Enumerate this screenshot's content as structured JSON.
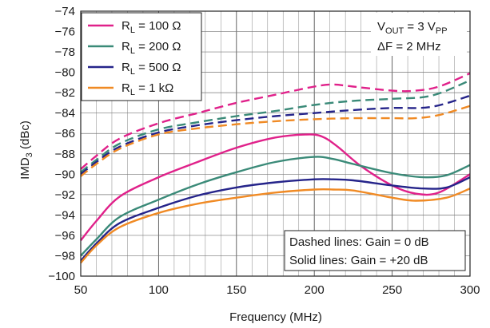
{
  "chart_data": {
    "type": "line",
    "xlabel": "Frequency (MHz)",
    "ylabel_main": "IMD",
    "ylabel_sub": "3",
    "ylabel_rest": " (dBc)",
    "xlim": [
      50,
      300
    ],
    "ylim": [
      -100,
      -74
    ],
    "x_ticks": [
      50,
      100,
      150,
      200,
      250,
      300
    ],
    "y_ticks": [
      -74,
      -76,
      -78,
      -80,
      -82,
      -84,
      -86,
      -88,
      -90,
      -92,
      -94,
      -96,
      -98,
      -100
    ],
    "grid": true,
    "legend_position": "top-left",
    "series": [
      {
        "name": "R_L = 100 Ω",
        "label_main": "R",
        "label_sub": "L",
        "label_rest": " = 100 Ω",
        "color": "#e0218a",
        "style": "dashed",
        "x": [
          50,
          60,
          75,
          100,
          125,
          150,
          175,
          200,
          212,
          225,
          250,
          265,
          280,
          300
        ],
        "y": [
          -89.5,
          -88.2,
          -86.5,
          -85.0,
          -84.0,
          -83.0,
          -82.2,
          -81.4,
          -81.2,
          -81.4,
          -81.8,
          -81.8,
          -81.4,
          -80.1
        ]
      },
      {
        "name": "R_L = 200 Ω",
        "label_main": "R",
        "label_sub": "L",
        "label_rest": " = 200 Ω",
        "color": "#3a8a78",
        "style": "dashed",
        "x": [
          50,
          60,
          75,
          100,
          125,
          150,
          175,
          200,
          225,
          250,
          275,
          300
        ],
        "y": [
          -89.8,
          -88.6,
          -87.0,
          -85.6,
          -84.9,
          -84.3,
          -83.8,
          -83.2,
          -82.8,
          -82.6,
          -82.3,
          -80.8
        ]
      },
      {
        "name": "R_L = 500 Ω",
        "label_main": "R",
        "label_sub": "L",
        "label_rest": " = 500 Ω",
        "color": "#25248a",
        "style": "dashed",
        "x": [
          50,
          60,
          75,
          100,
          125,
          150,
          175,
          200,
          225,
          250,
          275,
          300
        ],
        "y": [
          -90.0,
          -88.8,
          -87.3,
          -85.9,
          -85.2,
          -84.7,
          -84.3,
          -84.0,
          -83.7,
          -83.5,
          -83.4,
          -82.3
        ]
      },
      {
        "name": "R_L = 1 kΩ",
        "label_main": "R",
        "label_sub": "L",
        "label_rest": " = 1 kΩ",
        "color": "#f08a24",
        "style": "dashed",
        "x": [
          50,
          60,
          75,
          100,
          125,
          150,
          175,
          200,
          225,
          250,
          265,
          280,
          300
        ],
        "y": [
          -90.2,
          -89.0,
          -87.5,
          -86.1,
          -85.5,
          -85.1,
          -84.8,
          -84.6,
          -84.5,
          -84.5,
          -84.5,
          -84.2,
          -83.3
        ]
      },
      {
        "name": "R_L = 100 Ω",
        "color": "#e0218a",
        "style": "solid",
        "x": [
          50,
          60,
          75,
          100,
          125,
          150,
          175,
          195,
          205,
          215,
          230,
          250,
          265,
          280,
          300
        ],
        "y": [
          -96.5,
          -94.6,
          -92.2,
          -90.3,
          -88.8,
          -87.4,
          -86.4,
          -86.1,
          -86.3,
          -87.3,
          -89.2,
          -91.1,
          -91.9,
          -91.8,
          -90.0
        ]
      },
      {
        "name": "R_L = 200 Ω",
        "color": "#3a8a78",
        "style": "solid",
        "x": [
          50,
          60,
          75,
          100,
          125,
          150,
          175,
          200,
          212,
          225,
          250,
          270,
          285,
          300
        ],
        "y": [
          -98.0,
          -96.4,
          -94.2,
          -92.5,
          -91.0,
          -89.8,
          -88.8,
          -88.3,
          -88.5,
          -89.0,
          -89.9,
          -90.3,
          -90.1,
          -89.1
        ]
      },
      {
        "name": "R_L = 500 Ω",
        "color": "#25248a",
        "style": "solid",
        "x": [
          50,
          60,
          75,
          100,
          125,
          150,
          175,
          200,
          212,
          225,
          250,
          270,
          285,
          300
        ],
        "y": [
          -98.5,
          -96.8,
          -94.8,
          -93.3,
          -92.1,
          -91.3,
          -90.8,
          -90.5,
          -90.5,
          -90.6,
          -91.1,
          -91.4,
          -91.3,
          -90.3
        ]
      },
      {
        "name": "R_L = 1 kΩ",
        "color": "#f08a24",
        "style": "solid",
        "x": [
          50,
          60,
          75,
          100,
          125,
          150,
          175,
          200,
          212,
          225,
          250,
          265,
          285,
          300
        ],
        "y": [
          -98.7,
          -97.0,
          -95.2,
          -93.8,
          -92.9,
          -92.3,
          -91.8,
          -91.5,
          -91.5,
          -91.6,
          -92.3,
          -92.6,
          -92.3,
          -91.4
        ]
      }
    ],
    "annotations": {
      "vout_main": "V",
      "vout_sub": "OUT",
      "vout_rest": " = 3 V",
      "vout_sub2": "PP",
      "deltaf": "ΔF = 2 MHz",
      "dashed_note": "Dashed lines: Gain = 0 dB",
      "solid_note": "Solid lines: Gain = +20 dB"
    }
  }
}
